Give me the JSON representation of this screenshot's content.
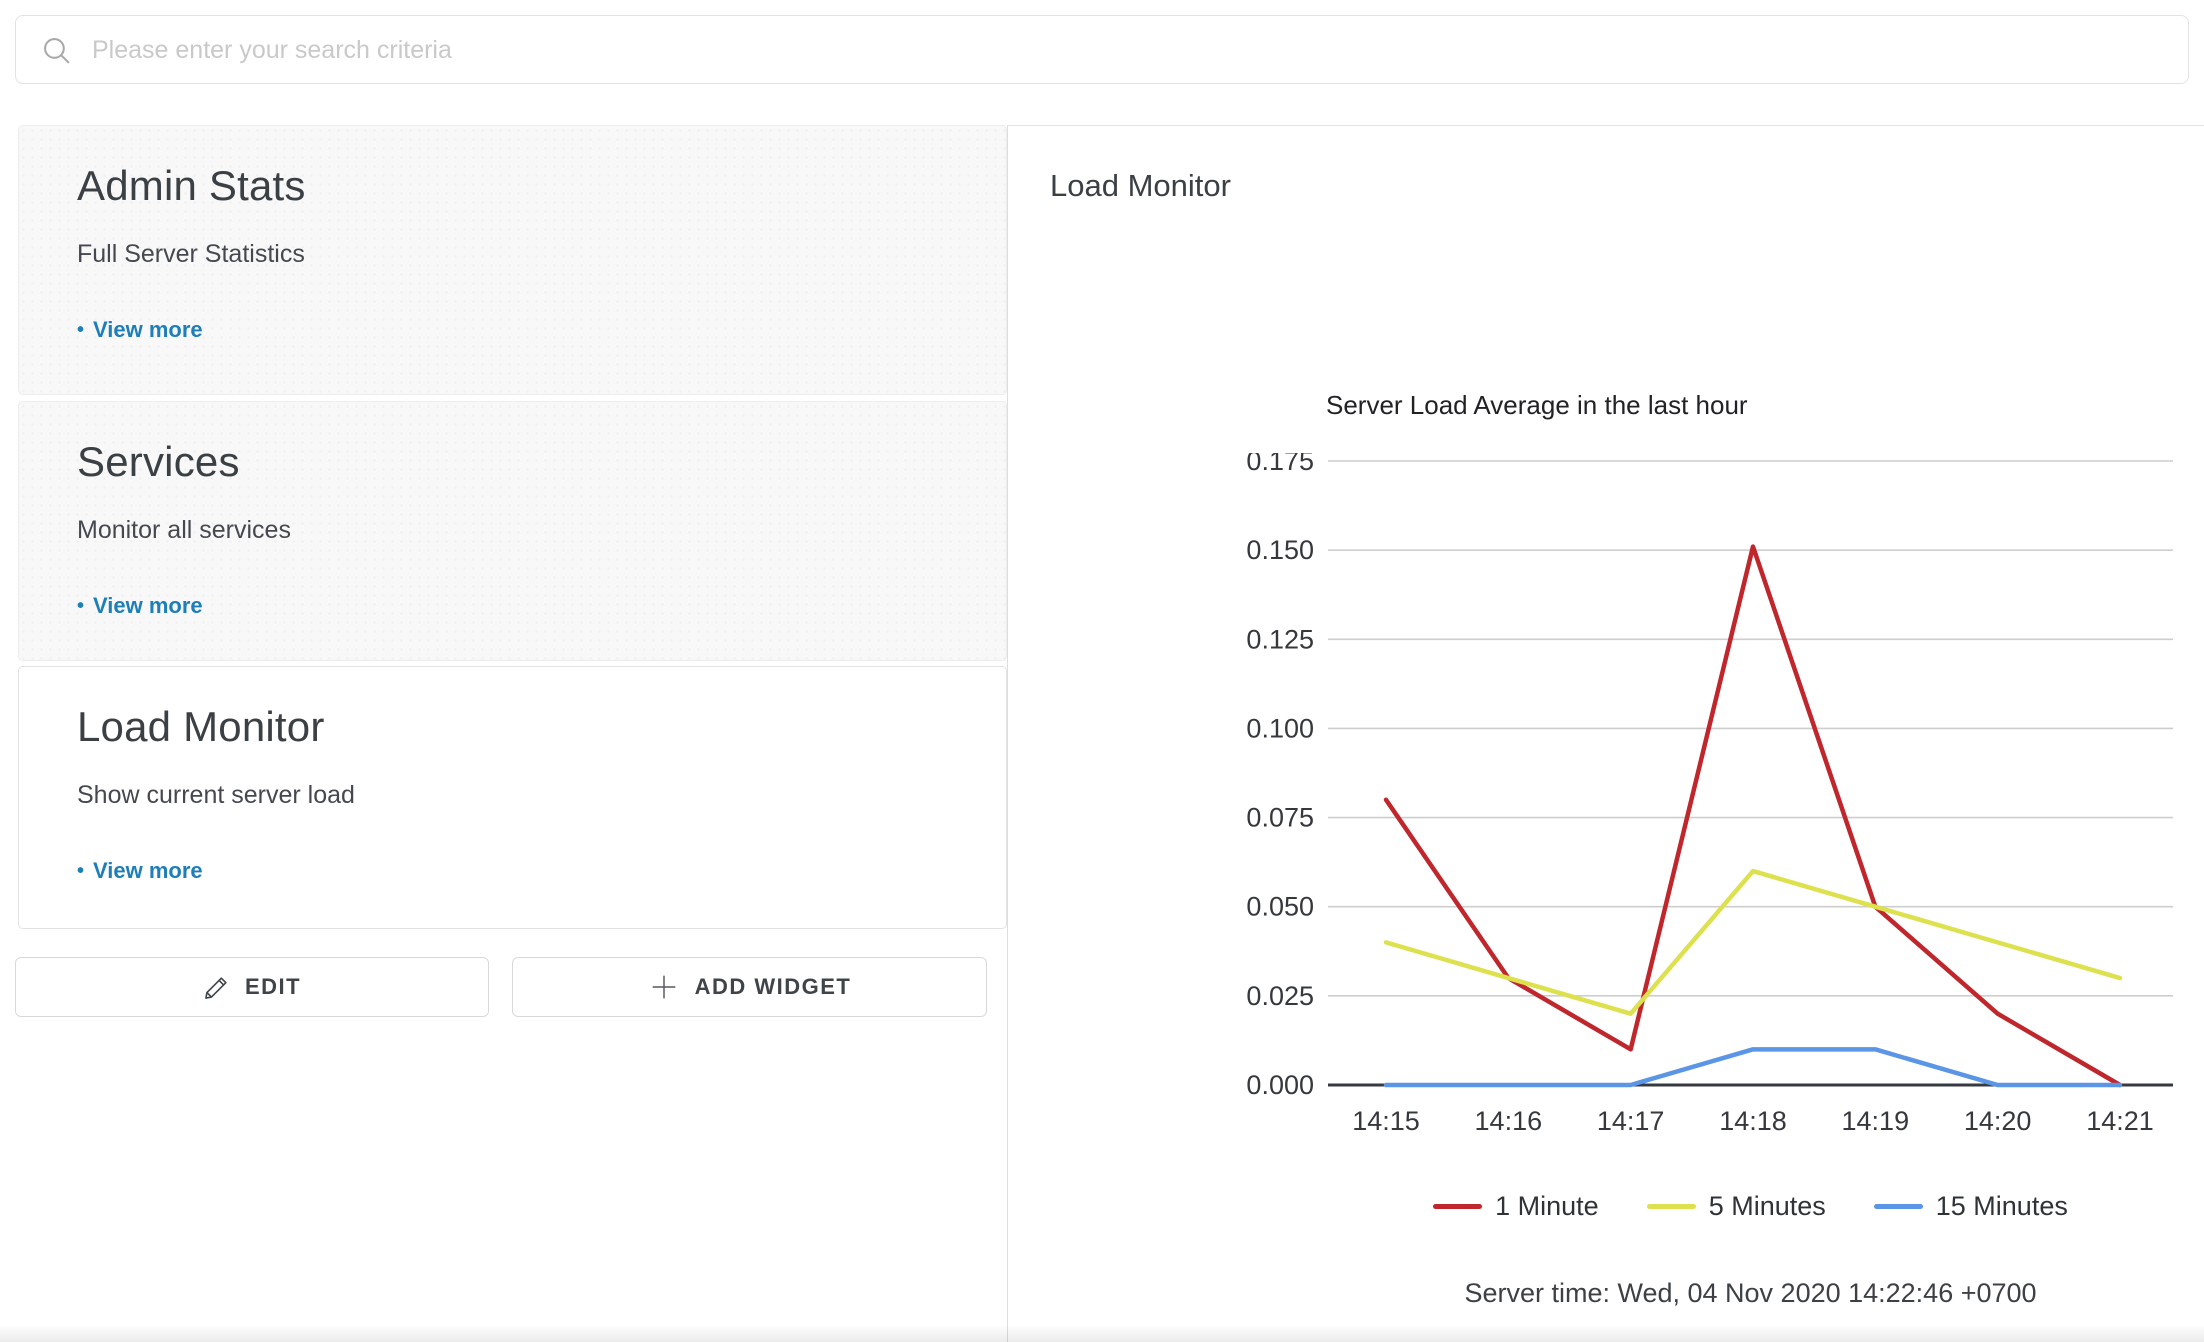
{
  "search": {
    "placeholder": "Please enter your search criteria"
  },
  "sidebar": {
    "cards": [
      {
        "title": "Admin Stats",
        "subtitle": "Full Server Statistics",
        "link": "View more",
        "bullet": "•"
      },
      {
        "title": "Services",
        "subtitle": "Monitor all services",
        "link": "View more",
        "bullet": "•"
      },
      {
        "title": "Load Monitor",
        "subtitle": "Show current server load",
        "link": "View more",
        "bullet": "•"
      }
    ],
    "edit_label": "EDIT",
    "add_widget_label": "ADD WIDGET"
  },
  "main": {
    "title": "Load Monitor",
    "server_time": "Server time: Wed, 04 Nov 2020 14:22:46 +0700"
  },
  "chart_data": {
    "type": "line",
    "title": "Server Load Average in the last hour",
    "categories": [
      "14:15",
      "14:16",
      "14:17",
      "14:18",
      "14:19",
      "14:20",
      "14:21"
    ],
    "series": [
      {
        "name": "1 Minute",
        "color": "#c0272d",
        "values": [
          0.08,
          0.03,
          0.01,
          0.151,
          0.05,
          0.02,
          0.0
        ]
      },
      {
        "name": "5 Minutes",
        "color": "#dde14e",
        "values": [
          0.04,
          0.03,
          0.02,
          0.06,
          0.05,
          0.04,
          0.03
        ]
      },
      {
        "name": "15 Minutes",
        "color": "#5b95e5",
        "values": [
          0.0,
          0.0,
          0.0,
          0.01,
          0.01,
          0.0,
          0.0
        ]
      }
    ],
    "xlabel": "",
    "ylabel": "",
    "ylim": [
      0,
      0.175
    ],
    "ytick_step": 0.025,
    "ytick_decimals": 3,
    "grid": true,
    "legend_position": "bottom",
    "colors": {
      "grid": "#cecece",
      "axis": "#36393f",
      "text": "#35383c"
    }
  }
}
